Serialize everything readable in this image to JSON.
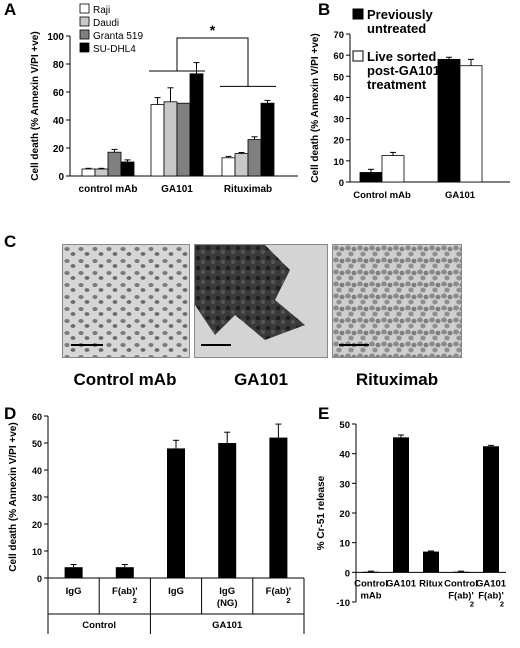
{
  "panels": {
    "A": "A",
    "B": "B",
    "C": "C",
    "D": "D",
    "E": "E"
  },
  "micrographs": [
    {
      "label": "Control mAb"
    },
    {
      "label": "GA101"
    },
    {
      "label": "Rituximab"
    }
  ],
  "colors": {
    "raji": "#ffffff",
    "daudi": "#c8c8c8",
    "granta": "#808080",
    "sudhl4": "#000000",
    "black": "#000000",
    "white": "#ffffff"
  },
  "chart_data": [
    {
      "id": "A",
      "type": "bar",
      "ylabel": "Cell death (% Annexin V/PI +ve)",
      "ylim": [
        0,
        100
      ],
      "yticks": [
        0,
        20,
        40,
        60,
        80,
        100
      ],
      "categories": [
        "control mAb",
        "GA101",
        "Rituximab"
      ],
      "series": [
        {
          "name": "Raji",
          "values": [
            5,
            51,
            13
          ],
          "errors": [
            0.5,
            5,
            1
          ]
        },
        {
          "name": "Daudi",
          "values": [
            5,
            53,
            16
          ],
          "errors": [
            0.5,
            10,
            0.8
          ]
        },
        {
          "name": "Granta 519",
          "values": [
            17,
            52,
            26
          ],
          "errors": [
            2,
            0,
            2
          ]
        },
        {
          "name": "SU-DHL4",
          "values": [
            10,
            73,
            52
          ],
          "errors": [
            1.5,
            8,
            2
          ]
        }
      ],
      "annotation": "*",
      "legend": "top-left"
    },
    {
      "id": "B",
      "type": "bar",
      "ylabel": "Cell death (% Annexin V/PI +ve)",
      "ylim": [
        0,
        70
      ],
      "yticks": [
        0,
        10,
        20,
        30,
        40,
        50,
        60,
        70
      ],
      "categories": [
        "Control mAb",
        "GA101"
      ],
      "series": [
        {
          "name_lines": [
            "Previously",
            "untreated"
          ],
          "values": [
            4.5,
            58
          ],
          "errors": [
            1.5,
            1
          ]
        },
        {
          "name_lines": [
            "Live sorted",
            "post-GA101",
            "treatment"
          ],
          "values": [
            12.5,
            55
          ],
          "errors": [
            1.5,
            3
          ]
        }
      ],
      "legend": "top"
    },
    {
      "id": "D",
      "type": "bar",
      "ylabel": "Cell death (% Annexin V/PI +ve)",
      "ylim": [
        0,
        60
      ],
      "yticks": [
        0,
        10,
        20,
        30,
        40,
        50,
        60
      ],
      "categories": [
        [
          "IgG"
        ],
        [
          "F(ab)'",
          "2"
        ],
        [
          "IgG"
        ],
        [
          "IgG",
          "(NG)"
        ],
        [
          "F(ab)'",
          "2"
        ]
      ],
      "groups": [
        {
          "label": "Control",
          "span": [
            0,
            1
          ]
        },
        {
          "label": "GA101",
          "span": [
            2,
            4
          ]
        }
      ],
      "values": [
        4,
        4,
        48,
        50,
        52
      ],
      "errors": [
        1,
        1,
        3,
        4,
        5
      ]
    },
    {
      "id": "E",
      "type": "bar",
      "ylabel": "% Cr-51 release",
      "ylim": [
        -10,
        50
      ],
      "yticks": [
        -10,
        0,
        10,
        20,
        30,
        40,
        50
      ],
      "categories": [
        [
          "Control",
          "mAb"
        ],
        [
          "GA101"
        ],
        [
          "Ritux"
        ],
        [
          "Control",
          "F(ab)'",
          "2"
        ],
        [
          "GA101",
          "F(ab)'",
          "2"
        ]
      ],
      "values": [
        0.2,
        45.5,
        7,
        0.2,
        42.5
      ],
      "errors": [
        0.2,
        0.8,
        0.2,
        0.2,
        0.3
      ]
    }
  ]
}
